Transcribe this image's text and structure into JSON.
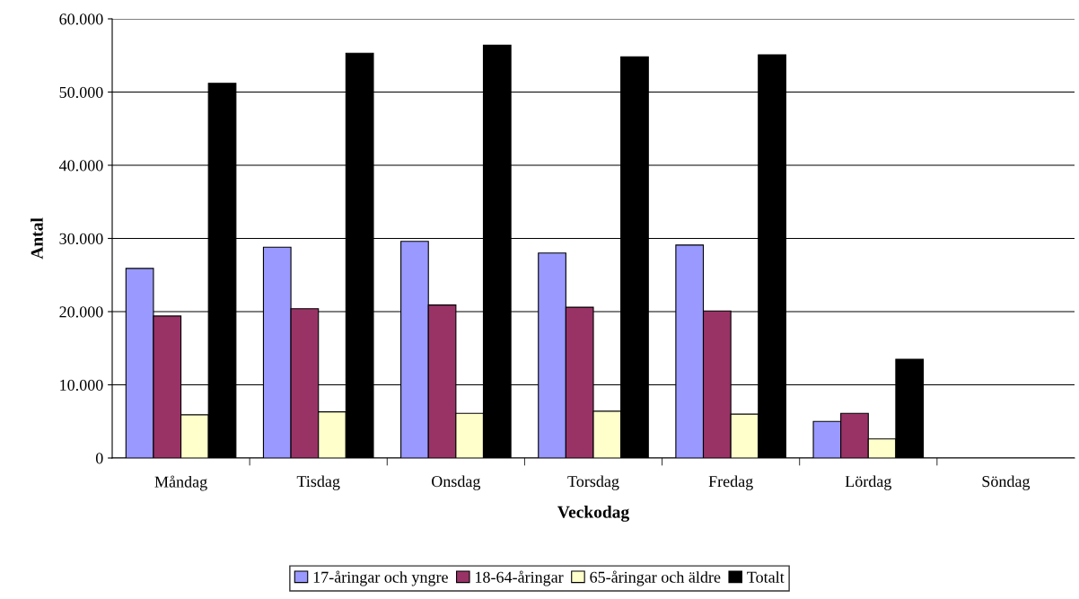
{
  "chart_data": {
    "type": "bar",
    "xlabel": "Veckodag",
    "ylabel": "Antal",
    "categories": [
      "Måndag",
      "Tisdag",
      "Onsdag",
      "Torsdag",
      "Fredag",
      "Lördag",
      "Söndag"
    ],
    "series": [
      {
        "name": "17-åringar och yngre",
        "color": "#9999ff",
        "values": [
          25900,
          28800,
          29600,
          28000,
          29100,
          5000,
          null
        ]
      },
      {
        "name": "18-64-åringar",
        "color": "#993366",
        "values": [
          19400,
          20400,
          20900,
          20600,
          20100,
          6100,
          null
        ]
      },
      {
        "name": "65-åringar och äldre",
        "color": "#ffffcc",
        "values": [
          5900,
          6300,
          6100,
          6400,
          6000,
          2600,
          null
        ]
      },
      {
        "name": "Totalt",
        "color": "#000000",
        "values": [
          51200,
          55300,
          56400,
          54800,
          55100,
          13500,
          null
        ]
      }
    ],
    "ylim": [
      0,
      60000
    ],
    "yticks": [
      {
        "value": 0,
        "label": "0"
      },
      {
        "value": 10000,
        "label": "10.000"
      },
      {
        "value": 20000,
        "label": "20.000"
      },
      {
        "value": 30000,
        "label": "30.000"
      },
      {
        "value": 40000,
        "label": "40.000"
      },
      {
        "value": 50000,
        "label": "50.000"
      },
      {
        "value": 60000,
        "label": "60.000"
      }
    ],
    "grid": "y",
    "legend": "bottom"
  }
}
